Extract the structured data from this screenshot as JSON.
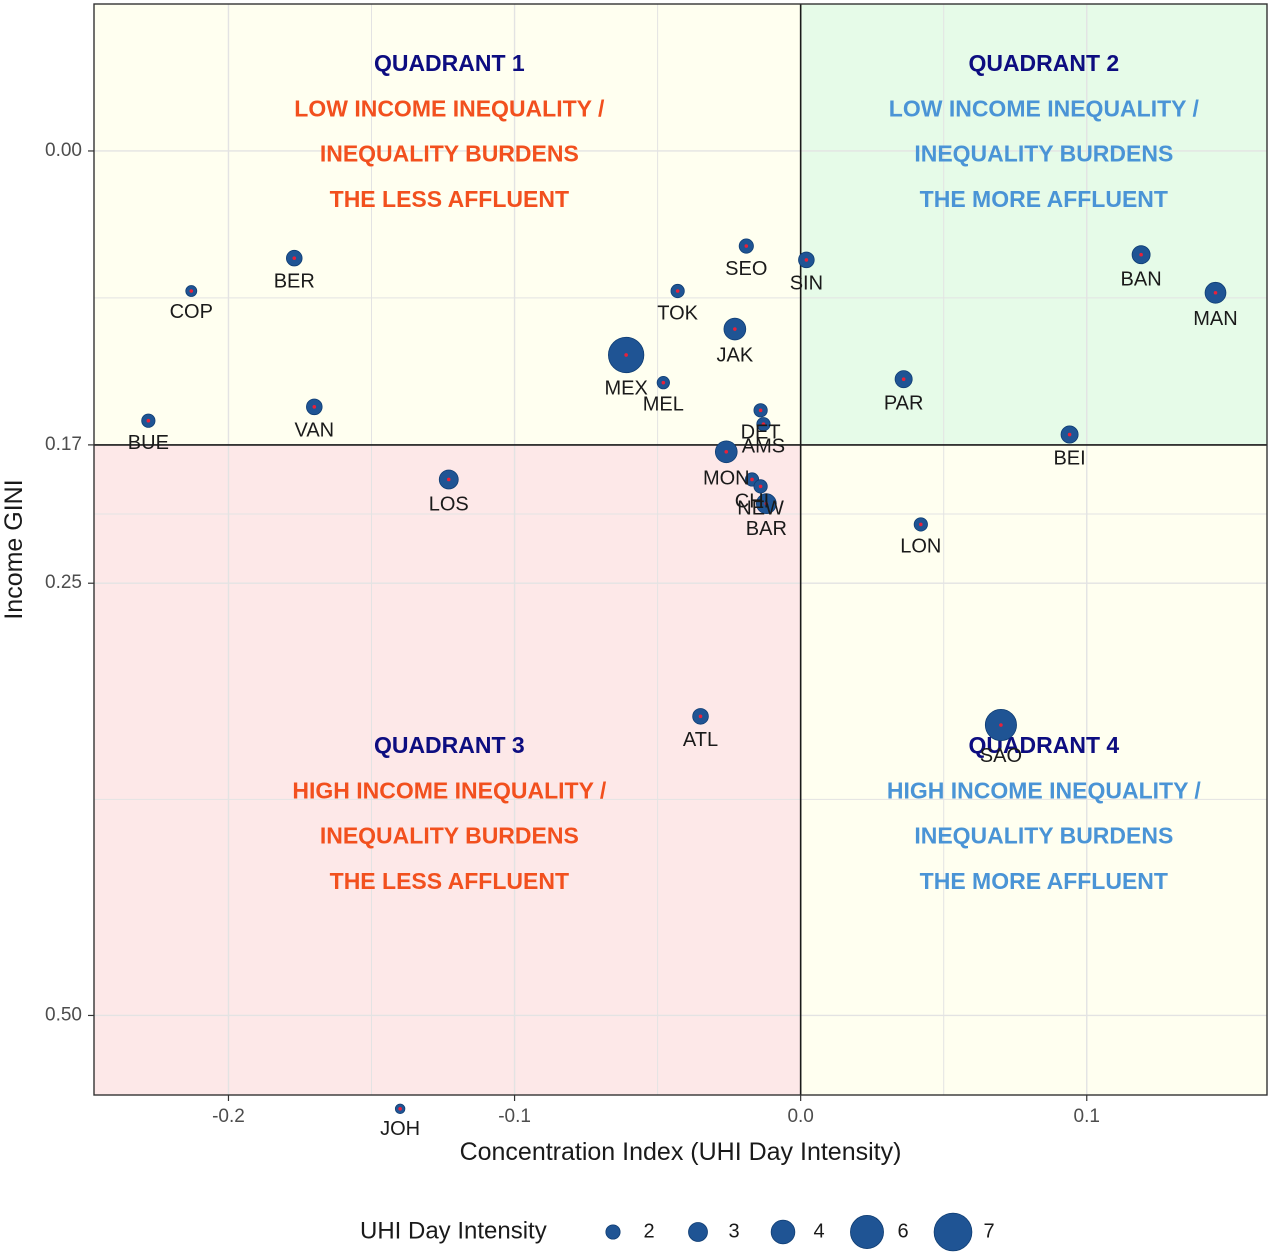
{
  "chart_data": {
    "type": "scatter",
    "xlabel": "Concentration Index (UHI Day Intensity)",
    "ylabel": "Income GINI",
    "xlim": [
      -0.247,
      0.163
    ],
    "ylim": [
      -0.085,
      0.546
    ],
    "y_reversed": true,
    "x_ticks": [
      {
        "value": -0.2,
        "label": "-0.2"
      },
      {
        "value": -0.1,
        "label": "-0.1"
      },
      {
        "value": 0.0,
        "label": "0.0"
      },
      {
        "value": 0.1,
        "label": "0.1"
      }
    ],
    "y_ticks": [
      {
        "value": 0.0,
        "label": "0.00"
      },
      {
        "value": 0.17,
        "label": "0.17"
      },
      {
        "value": 0.25,
        "label": "0.25"
      },
      {
        "value": 0.5,
        "label": "0.50"
      }
    ],
    "grid": true,
    "reference_lines": {
      "x": 0.0,
      "y": 0.17
    },
    "colors": {
      "point_fill": "#1f5494",
      "point_stroke": "#0f3d73",
      "center_dot": "#e8213a",
      "q1_bg": "#fffff0",
      "q2_bg": "#e6fbe8",
      "q3_bg": "#fde8e8",
      "q4_bg": "#fffff0",
      "q_title": "#0d0d80",
      "q_red": "#f2501e",
      "q_blue": "#4a94d6",
      "grid": "#e3e3e3"
    },
    "quadrants": [
      {
        "id": "q1",
        "title": "QUADRANT 1",
        "lines": [
          "LOW INCOME INEQUALITY /",
          "INEQUALITY BURDENS",
          "THE LESS AFFLUENT"
        ],
        "color_key": "q_red"
      },
      {
        "id": "q2",
        "title": "QUADRANT 2",
        "lines": [
          "LOW INCOME INEQUALITY /",
          "INEQUALITY BURDENS",
          "THE MORE AFFLUENT"
        ],
        "color_key": "q_blue"
      },
      {
        "id": "q3",
        "title": "QUADRANT 3",
        "lines": [
          "HIGH INCOME INEQUALITY /",
          "INEQUALITY BURDENS",
          "THE LESS AFFLUENT"
        ],
        "color_key": "q_red"
      },
      {
        "id": "q4",
        "title": "QUADRANT 4",
        "lines": [
          "HIGH INCOME INEQUALITY /",
          "INEQUALITY BURDENS",
          "THE MORE AFFLUENT"
        ],
        "color_key": "q_blue"
      }
    ],
    "legend": {
      "title": "UHI Day Intensity",
      "placement": "bottom",
      "items": [
        {
          "value": 2,
          "label": "2"
        },
        {
          "value": 3,
          "label": "3"
        },
        {
          "value": 4,
          "label": "4"
        },
        {
          "value": 6,
          "label": "6"
        },
        {
          "value": 7,
          "label": "7"
        }
      ]
    },
    "points": [
      {
        "label": "COP",
        "x": -0.213,
        "y": 0.081,
        "size": 1.3
      },
      {
        "label": "BER",
        "x": -0.177,
        "y": 0.062,
        "size": 2.3
      },
      {
        "label": "BUE",
        "x": -0.228,
        "y": 0.156,
        "size": 1.8
      },
      {
        "label": "VAN",
        "x": -0.17,
        "y": 0.148,
        "size": 2.3
      },
      {
        "label": "LOS",
        "x": -0.123,
        "y": 0.19,
        "size": 3.0
      },
      {
        "label": "JOH",
        "x": -0.14,
        "y": 0.554,
        "size": 1.0
      },
      {
        "label": "ATL",
        "x": -0.035,
        "y": 0.327,
        "size": 2.3
      },
      {
        "label": "MEX",
        "x": -0.061,
        "y": 0.118,
        "size": 6.5
      },
      {
        "label": "MEL",
        "x": -0.048,
        "y": 0.134,
        "size": 1.6
      },
      {
        "label": "TOK",
        "x": -0.043,
        "y": 0.081,
        "size": 1.8
      },
      {
        "label": "SEO",
        "x": -0.019,
        "y": 0.055,
        "size": 2.0
      },
      {
        "label": "JAK",
        "x": -0.023,
        "y": 0.103,
        "size": 3.6
      },
      {
        "label": "DET",
        "x": -0.014,
        "y": 0.15,
        "size": 1.8
      },
      {
        "label": "AMS",
        "x": -0.013,
        "y": 0.158,
        "size": 1.8
      },
      {
        "label": "MON",
        "x": -0.026,
        "y": 0.174,
        "size": 3.6
      },
      {
        "label": "CHI",
        "x": -0.017,
        "y": 0.19,
        "size": 1.8
      },
      {
        "label": "NEW",
        "x": -0.014,
        "y": 0.194,
        "size": 1.8
      },
      {
        "label": "BAR",
        "x": -0.012,
        "y": 0.204,
        "size": 3.2
      },
      {
        "label": "SIN",
        "x": 0.002,
        "y": 0.063,
        "size": 2.3
      },
      {
        "label": "BAN",
        "x": 0.119,
        "y": 0.06,
        "size": 2.8
      },
      {
        "label": "MAN",
        "x": 0.145,
        "y": 0.082,
        "size": 3.4
      },
      {
        "label": "PAR",
        "x": 0.036,
        "y": 0.132,
        "size": 2.6
      },
      {
        "label": "BEI",
        "x": 0.094,
        "y": 0.164,
        "size": 2.6
      },
      {
        "label": "LON",
        "x": 0.042,
        "y": 0.216,
        "size": 1.8
      },
      {
        "label": "SAO",
        "x": 0.07,
        "y": 0.332,
        "size": 5.6
      }
    ]
  }
}
